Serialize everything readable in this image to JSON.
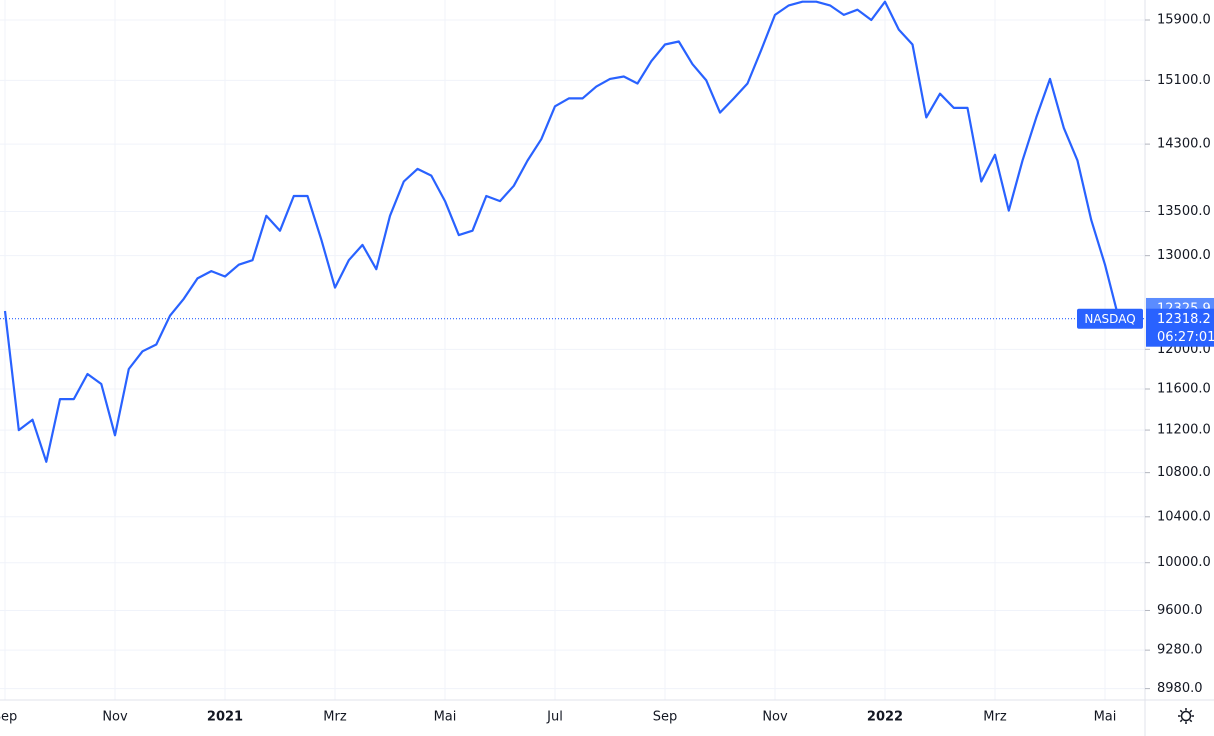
{
  "chart_data": {
    "type": "line",
    "log_scale": true,
    "grid": true,
    "categories": [
      "Sep",
      null,
      null,
      null,
      null,
      null,
      null,
      null,
      "Nov",
      null,
      null,
      null,
      null,
      null,
      null,
      null,
      "2021",
      null,
      null,
      null,
      null,
      null,
      null,
      null,
      "Mrz",
      null,
      null,
      null,
      null,
      null,
      null,
      null,
      "Mai",
      null,
      null,
      null,
      null,
      null,
      null,
      null,
      "Jul",
      null,
      null,
      null,
      null,
      null,
      null,
      null,
      "Sep",
      null,
      null,
      null,
      null,
      null,
      null,
      null,
      "Nov",
      null,
      null,
      null,
      null,
      null,
      null,
      null,
      "2022",
      null,
      null,
      null,
      null,
      null,
      null,
      null,
      "Mrz",
      null,
      null,
      null,
      null,
      null,
      null,
      null,
      "Mai",
      null
    ],
    "series": [
      {
        "name": "NASDAQ",
        "color": "#2962ff",
        "values": [
          12400,
          11200,
          11300,
          10900,
          11500,
          11500,
          11750,
          11650,
          11150,
          11800,
          11980,
          12050,
          12350,
          12530,
          12750,
          12830,
          12770,
          12900,
          12950,
          13450,
          13280,
          13680,
          13680,
          13180,
          12650,
          12950,
          13120,
          12850,
          13450,
          13850,
          14000,
          13920,
          13620,
          13230,
          13280,
          13680,
          13620,
          13800,
          14100,
          14360,
          14770,
          14870,
          14870,
          15020,
          15120,
          15150,
          15060,
          15350,
          15570,
          15610,
          15310,
          15100,
          14690,
          14870,
          15060,
          15500,
          15970,
          16100,
          16150,
          16150,
          16100,
          15970,
          16040,
          15900,
          16150,
          15770,
          15570,
          14630,
          14930,
          14750,
          14750,
          13850,
          14170,
          13510,
          14100,
          14630,
          15120,
          14500,
          14100,
          13400,
          12900,
          12318
        ]
      }
    ],
    "ylim": [
      8893,
      16174
    ],
    "yticks": [
      {
        "value": 15900,
        "label": "15900.0"
      },
      {
        "value": 15100,
        "label": "15100.0"
      },
      {
        "value": 14300,
        "label": "14300.0"
      },
      {
        "value": 13500,
        "label": "13500.0"
      },
      {
        "value": 13000,
        "label": "13000.0"
      },
      {
        "value": 12000,
        "label": "12000.0"
      },
      {
        "value": 11600,
        "label": "11600.0"
      },
      {
        "value": 11200,
        "label": "11200.0"
      },
      {
        "value": 10800,
        "label": "10800.0"
      },
      {
        "value": 10400,
        "label": "10400.0"
      },
      {
        "value": 10000,
        "label": "10000.0"
      },
      {
        "value": 9600,
        "label": "9600.0"
      },
      {
        "value": 9280,
        "label": "9280.0"
      },
      {
        "value": 8980,
        "label": "8980.0"
      }
    ],
    "price_line": {
      "value": 12318.2,
      "countdown": "06:27:01"
    },
    "marker": {
      "value": 12325.9
    }
  }
}
